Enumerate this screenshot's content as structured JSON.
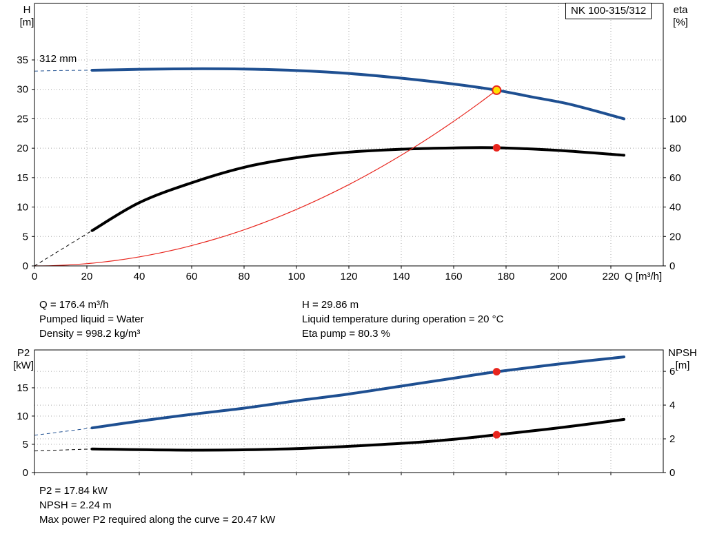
{
  "pump_type": "NK 100-315/312",
  "labels": {
    "impeller_diameter": "312 mm",
    "h_axis": [
      "H",
      "[m]"
    ],
    "eta_axis": [
      "eta",
      "[%]"
    ],
    "p2_axis": [
      "P2",
      "[kW]"
    ],
    "npsh_axis": [
      "NPSH",
      "[m]"
    ],
    "q_axis": "Q [m³/h]"
  },
  "results_top": {
    "left": [
      "Q = 176.4 m³/h",
      "Pumped liquid = Water",
      "Density = 998.2 kg/m³"
    ],
    "right": [
      "H = 29.86 m",
      "Liquid temperature during operation = 20 °C",
      "Eta pump = 80.3 %"
    ]
  },
  "results_bottom": [
    "P2 = 17.84 kW",
    "NPSH = 2.24 m",
    "Max power P2 required along the curve = 20.47 kW"
  ],
  "colors": {
    "curve_blue": "#1e4f91",
    "curve_black": "#000000",
    "curve_red": "#e8251d",
    "duty_fill": "#ffe000",
    "grid": "#a8a8a8",
    "axis": "#000000"
  },
  "duty_point": {
    "q": 176.4,
    "h": 29.86,
    "eta": 80.3,
    "p2": 17.84,
    "npsh": 2.24
  },
  "chart_data": [
    {
      "type": "line",
      "name": "qh-eta-chart",
      "x": {
        "label": "Q [m³/h]",
        "min": 0,
        "max": 240,
        "ticks": [
          0,
          20,
          40,
          60,
          80,
          100,
          120,
          140,
          160,
          180,
          200,
          220
        ],
        "grid": true
      },
      "y_left": {
        "label": "H [m]",
        "min": 0,
        "max": 44.6,
        "ticks": [
          0,
          5,
          10,
          15,
          20,
          25,
          30,
          35
        ]
      },
      "y_right": {
        "label": "eta [%]",
        "min": 0,
        "max": 178.4,
        "ticks": [
          0,
          20,
          40,
          60,
          80,
          100
        ]
      },
      "series": [
        {
          "name": "head-curve",
          "axis": "left",
          "color": "#1e4f91",
          "width": 4,
          "dash_until": 22,
          "points": [
            [
              0,
              33.1
            ],
            [
              10,
              33.2
            ],
            [
              22,
              33.25
            ],
            [
              40,
              33.4
            ],
            [
              60,
              33.5
            ],
            [
              80,
              33.45
            ],
            [
              100,
              33.2
            ],
            [
              120,
              32.7
            ],
            [
              140,
              31.9
            ],
            [
              160,
              30.9
            ],
            [
              176.4,
              29.86
            ],
            [
              190,
              28.7
            ],
            [
              205,
              27.4
            ],
            [
              225,
              25.0
            ]
          ]
        },
        {
          "name": "efficiency-curve",
          "axis": "right",
          "color": "#000000",
          "width": 4,
          "dash_until": 22,
          "points": [
            [
              0,
              0
            ],
            [
              22,
              24
            ],
            [
              40,
              43
            ],
            [
              60,
              56.5
            ],
            [
              80,
              67
            ],
            [
              100,
              73.5
            ],
            [
              120,
              77.3
            ],
            [
              140,
              79.3
            ],
            [
              160,
              80.2
            ],
            [
              176.4,
              80.3
            ],
            [
              200,
              78.5
            ],
            [
              225,
              75.2
            ]
          ]
        },
        {
          "name": "system-curve",
          "axis": "left",
          "color": "#e8251d",
          "width": 1.2,
          "quadratic": {
            "q_end": 176.4,
            "v_end": 29.86
          }
        }
      ],
      "markers": [
        {
          "name": "duty-point",
          "axis": "left",
          "q": 176.4,
          "v": 29.86,
          "r": 6,
          "fill": "#ffe000",
          "stroke": "#e8251d",
          "stroke_width": 2
        },
        {
          "name": "efficiency-point",
          "axis": "right",
          "q": 176.4,
          "v": 80.3,
          "r": 5.5,
          "fill": "#e8251d"
        }
      ]
    },
    {
      "type": "line",
      "name": "p2-npsh-chart",
      "x": {
        "label": "",
        "min": 0,
        "max": 240,
        "ticks": [
          0,
          20,
          40,
          60,
          80,
          100,
          120,
          140,
          160,
          180,
          200,
          220
        ],
        "grid": true
      },
      "y_left": {
        "label": "P2 [kW]",
        "min": 0,
        "max": 21.7,
        "ticks": [
          0,
          5,
          10,
          15
        ]
      },
      "y_right": {
        "label": "NPSH [m]",
        "min": 0,
        "max": 7.27,
        "ticks": [
          0,
          2,
          4,
          6
        ]
      },
      "series": [
        {
          "name": "p2-curve",
          "axis": "left",
          "color": "#1e4f91",
          "width": 4,
          "dash_until": 22,
          "points": [
            [
              0,
              6.6
            ],
            [
              22,
              7.9
            ],
            [
              40,
              9.1
            ],
            [
              60,
              10.3
            ],
            [
              80,
              11.4
            ],
            [
              100,
              12.7
            ],
            [
              120,
              13.9
            ],
            [
              140,
              15.3
            ],
            [
              160,
              16.7
            ],
            [
              176.4,
              17.84
            ],
            [
              200,
              19.2
            ],
            [
              225,
              20.47
            ]
          ]
        },
        {
          "name": "npsh-curve",
          "axis": "right",
          "color": "#000000",
          "width": 4,
          "dash_until": 22,
          "points": [
            [
              0,
              1.28
            ],
            [
              22,
              1.4
            ],
            [
              60,
              1.33
            ],
            [
              100,
              1.42
            ],
            [
              140,
              1.73
            ],
            [
              160,
              1.97
            ],
            [
              176.4,
              2.24
            ],
            [
              200,
              2.65
            ],
            [
              225,
              3.15
            ]
          ]
        }
      ],
      "markers": [
        {
          "name": "p2-point",
          "axis": "left",
          "q": 176.4,
          "v": 17.84,
          "r": 5.5,
          "fill": "#e8251d"
        },
        {
          "name": "npsh-point",
          "axis": "right",
          "q": 176.4,
          "v": 2.24,
          "r": 5.5,
          "fill": "#e8251d"
        }
      ]
    }
  ]
}
